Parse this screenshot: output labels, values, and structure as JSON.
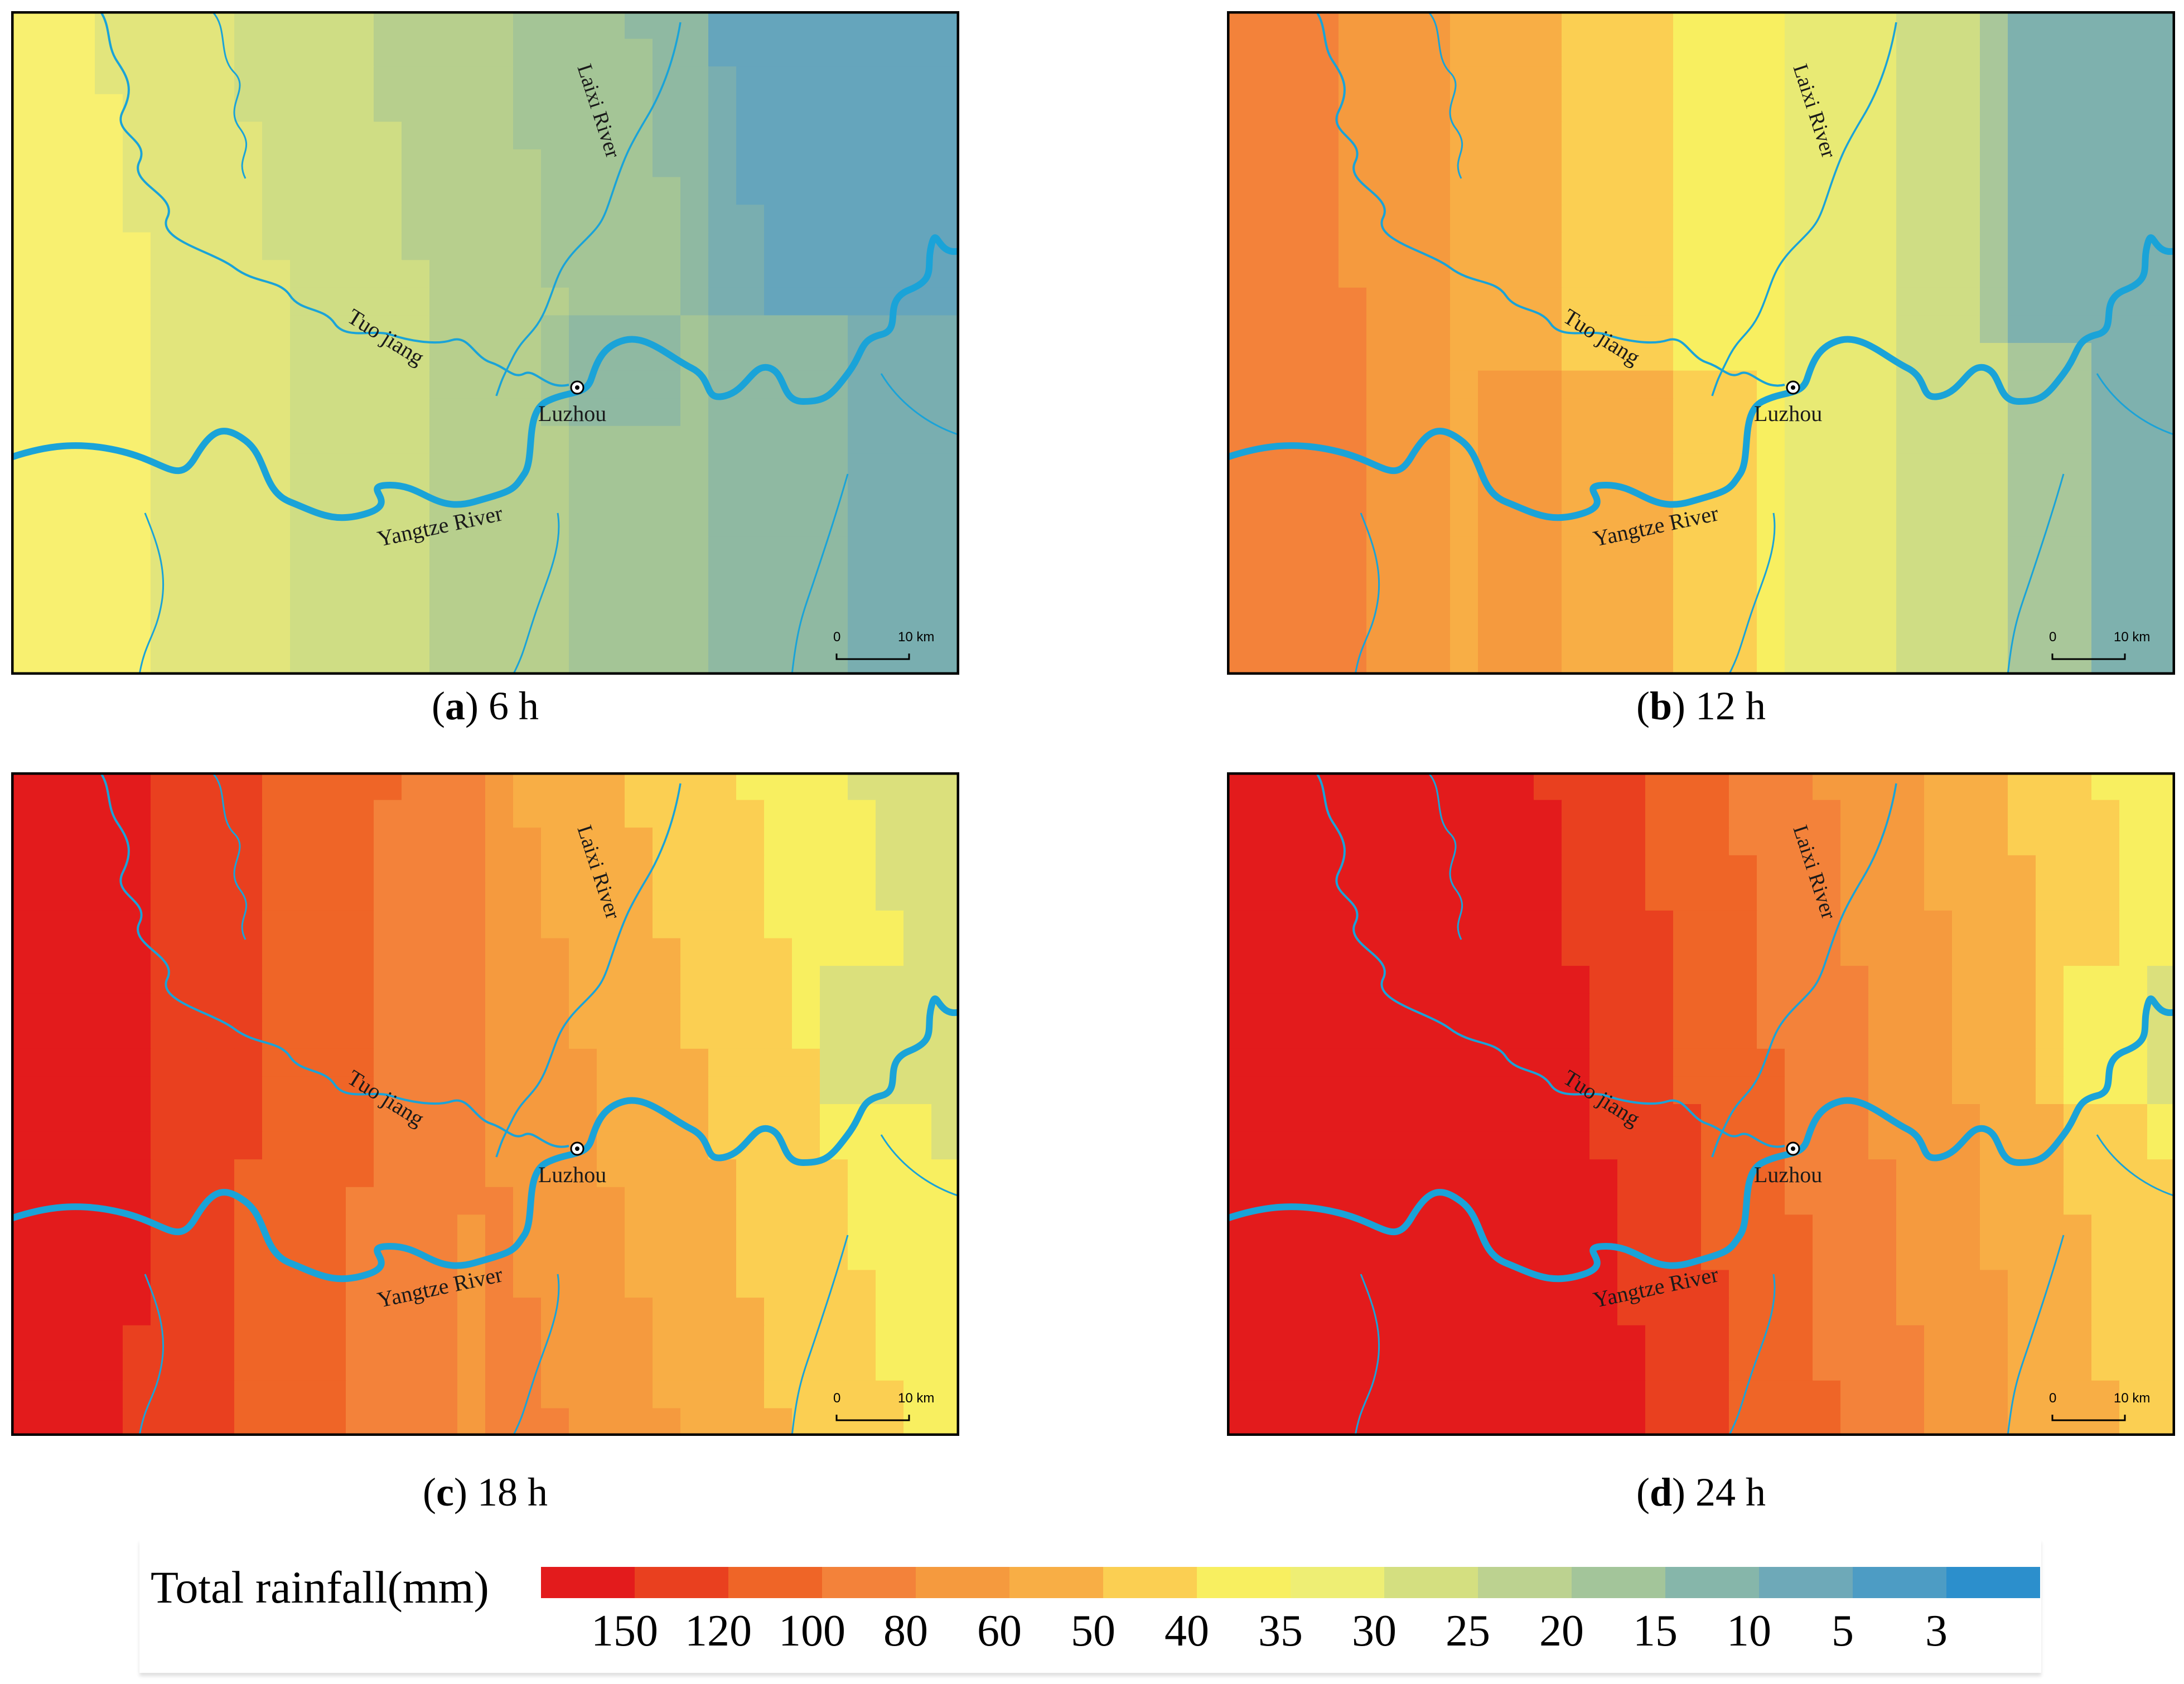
{
  "panels": [
    {
      "id": "a",
      "letter": "a",
      "time": "6 h",
      "west_color": "#f8f070",
      "west_mid_color": "#dbe27e",
      "center_color": "#93b69a",
      "east_color": "#6aa8b8",
      "palette": [
        "#f8f070",
        "#e2e57c",
        "#cfdd84",
        "#b7cf8d",
        "#a4c596",
        "#8fb9a2",
        "#79aeb0",
        "#65a5bc"
      ]
    },
    {
      "id": "b",
      "letter": "b",
      "time": "12 h",
      "palette": [
        "#f3823a",
        "#f59a3e",
        "#f8ae45",
        "#fbcf52",
        "#f8ef60",
        "#e8ea74",
        "#cfdd84",
        "#a9c79a",
        "#7eb1ae"
      ]
    },
    {
      "id": "c",
      "letter": "c",
      "time": "18 h",
      "palette": [
        "#e31b1c",
        "#e9401f",
        "#ef6527",
        "#f3823a",
        "#f59a3e",
        "#f8ae45",
        "#fbcf52",
        "#f8ef60",
        "#dbe07c"
      ]
    },
    {
      "id": "d",
      "letter": "d",
      "time": "24 h",
      "palette": [
        "#e31b1c",
        "#e9401f",
        "#ef6527",
        "#f3823a",
        "#f59a3e",
        "#f8ae45",
        "#fbcf52",
        "#f8ef60",
        "#dbe07c"
      ]
    }
  ],
  "map_labels": {
    "laixi": "Laixi River",
    "tuo": "Tuo jiang",
    "yangtze": "Yangtze River",
    "city": "Luzhou"
  },
  "scale_bar": {
    "start": "0",
    "end": "10 km"
  },
  "legend": {
    "title": "Total rainfall(mm)",
    "colors": [
      "#e31b1c",
      "#e9401f",
      "#ef6527",
      "#f3823a",
      "#f59a3e",
      "#f8ae45",
      "#fbcf52",
      "#f8ef60",
      "#eeee74",
      "#d4df80",
      "#bcd290",
      "#a3c59a",
      "#86b6aa",
      "#6ea9b8",
      "#4d9cc4",
      "#2c8fcc"
    ],
    "labels": [
      "150",
      "120",
      "100",
      "80",
      "60",
      "50",
      "40",
      "35",
      "30",
      "25",
      "20",
      "15",
      "10",
      "5",
      "3"
    ]
  },
  "colors": {
    "river": "#1aa3d8",
    "frame": "#000000"
  }
}
